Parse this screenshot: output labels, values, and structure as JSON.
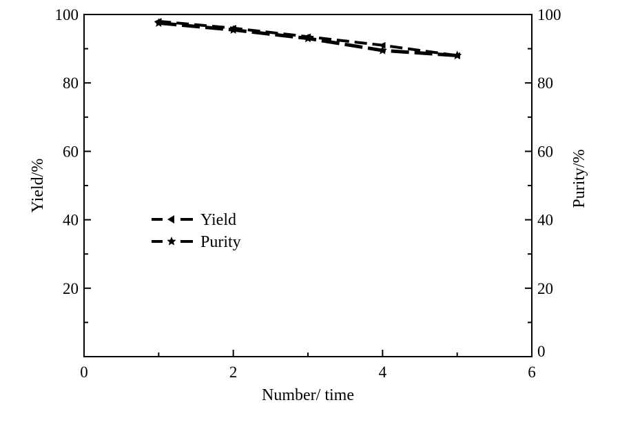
{
  "chart_data": {
    "type": "line",
    "xlabel": "Number/ time",
    "ylabel": "Yield/%",
    "y2label": "Purity/%",
    "xlim": [
      0,
      6
    ],
    "ylim": [
      0,
      100
    ],
    "y2lim": [
      0,
      100
    ],
    "x_ticks": [
      0,
      2,
      4,
      6
    ],
    "y_ticks": [
      20,
      40,
      60,
      80,
      100
    ],
    "y2_ticks": [
      0,
      20,
      40,
      60,
      80,
      100
    ],
    "grid": false,
    "legend_position": "middle-left",
    "series": [
      {
        "name": "Yield",
        "marker": "triangle-left",
        "axis": "left",
        "x": [
          1,
          2,
          3,
          4,
          5
        ],
        "y": [
          98,
          96,
          93.5,
          91,
          88
        ]
      },
      {
        "name": "Purity",
        "marker": "star",
        "axis": "right",
        "x": [
          1,
          2,
          3,
          4,
          5
        ],
        "y": [
          97.5,
          95.5,
          93,
          89.5,
          88
        ]
      }
    ]
  }
}
